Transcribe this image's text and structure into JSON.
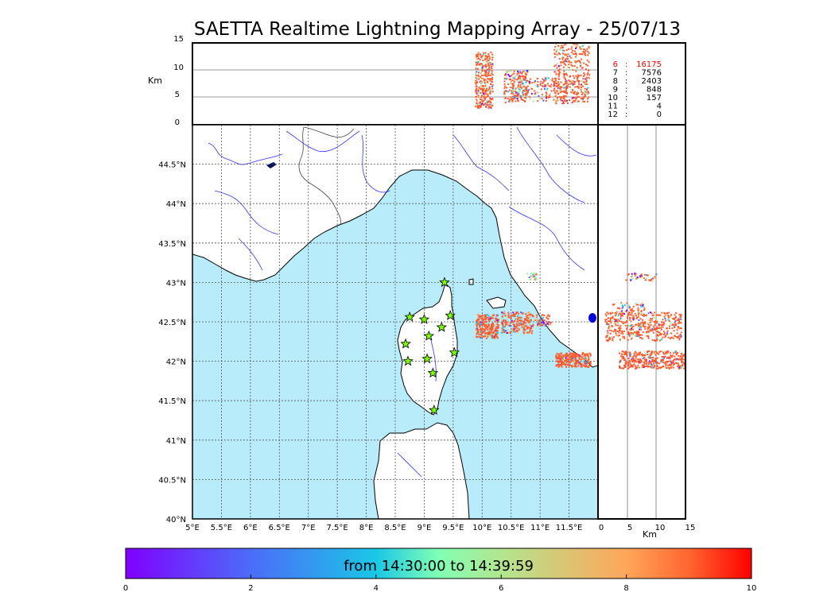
{
  "title": "SAETTA Realtime Lightning Mapping Array - 25/07/13",
  "top_panel": {
    "y_unit": "Km",
    "y_ticks": [
      "15",
      "10",
      "5",
      "0"
    ],
    "station_counts": [
      {
        "stations": "6",
        "sep": ":",
        "count": "16175",
        "color": "#ff0000"
      },
      {
        "stations": "7",
        "sep": ":",
        "count": "7576",
        "color": "#000000"
      },
      {
        "stations": "8",
        "sep": ":",
        "count": "2403",
        "color": "#000000"
      },
      {
        "stations": "9",
        "sep": ":",
        "count": "848",
        "color": "#000000"
      },
      {
        "stations": "10",
        "sep": ":",
        "count": "157",
        "color": "#000000"
      },
      {
        "stations": "11",
        "sep": ":",
        "count": "4",
        "color": "#000000"
      },
      {
        "stations": "12",
        "sep": ":",
        "count": "0",
        "color": "#000000"
      }
    ]
  },
  "map": {
    "lat_labels": [
      "44.5°N",
      "44°N",
      "43.5°N",
      "43°N",
      "42.5°N",
      "42°N",
      "41.5°N",
      "41°N",
      "40.5°N",
      "40°N"
    ],
    "lon_labels": [
      "5°E",
      "5.5°E",
      "6°E",
      "6.5°E",
      "7°E",
      "7.5°E",
      "8°E",
      "8.5°E",
      "9°E",
      "9.5°E",
      "10°E",
      "10.5°E",
      "11°E",
      "11.5°E"
    ],
    "lon_range": [
      5,
      12
    ],
    "lat_range": [
      40,
      45
    ],
    "stations": [
      {
        "lon": 9.35,
        "lat": 43.0
      },
      {
        "lon": 8.75,
        "lat": 42.56
      },
      {
        "lon": 9.0,
        "lat": 42.53
      },
      {
        "lon": 9.45,
        "lat": 42.58
      },
      {
        "lon": 9.3,
        "lat": 42.43
      },
      {
        "lon": 9.08,
        "lat": 42.32
      },
      {
        "lon": 8.68,
        "lat": 42.22
      },
      {
        "lon": 9.52,
        "lat": 42.11
      },
      {
        "lon": 8.72,
        "lat": 42.0
      },
      {
        "lon": 9.05,
        "lat": 42.03
      },
      {
        "lon": 9.15,
        "lat": 41.85
      },
      {
        "lon": 9.17,
        "lat": 41.38
      }
    ],
    "colors": {
      "sea": "#b8ecfb",
      "land": "#ffffff",
      "river": "#3333ff",
      "border": "#444444",
      "star": "#7cfc00"
    }
  },
  "side_panel": {
    "x_unit": "Km",
    "x_ticks": [
      "0",
      "5",
      "10",
      "15"
    ]
  },
  "colorbar": {
    "label": "from 14:30:00 to 14:39:59",
    "ticks": [
      "0",
      "2",
      "4",
      "6",
      "8",
      "10"
    ],
    "range": [
      0,
      10
    ]
  }
}
